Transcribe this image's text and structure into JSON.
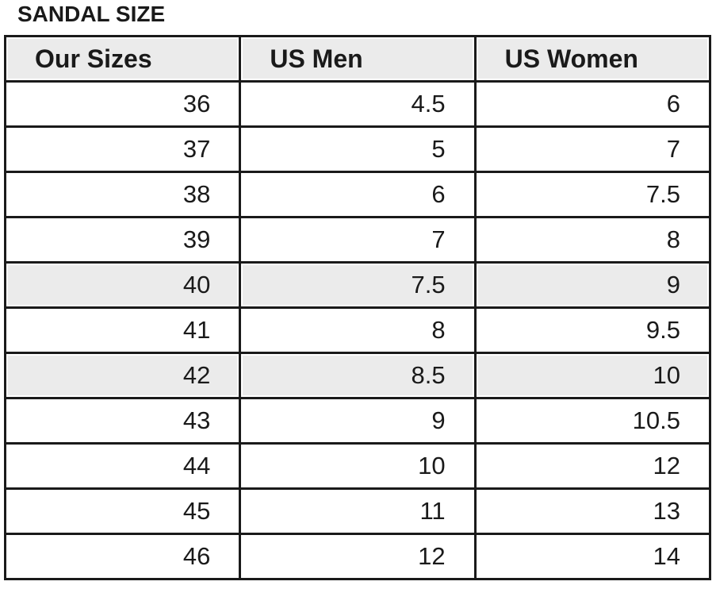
{
  "title": "SANDAL SIZE",
  "table": {
    "header": [
      "Our Sizes",
      "US Men",
      "US Women"
    ],
    "rows": [
      [
        36,
        4.5,
        6
      ],
      [
        37,
        5,
        7
      ],
      [
        38,
        6,
        7.5
      ],
      [
        39,
        7,
        8
      ],
      [
        40,
        7.5,
        9
      ],
      [
        41,
        8,
        9.5
      ],
      [
        42,
        8.5,
        10
      ],
      [
        43,
        9,
        10.5
      ],
      [
        44,
        10,
        12
      ],
      [
        45,
        11,
        13
      ],
      [
        46,
        12,
        14
      ]
    ]
  }
}
